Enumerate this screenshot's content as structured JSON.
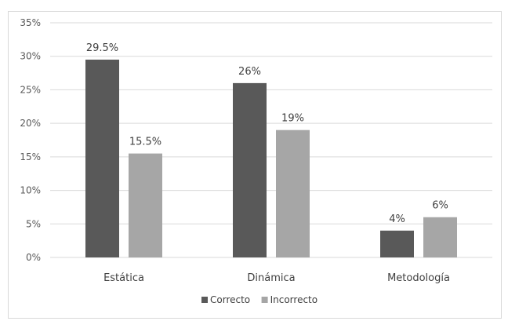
{
  "chart_data": {
    "type": "bar",
    "title": "",
    "xlabel": "",
    "ylabel": "",
    "categories": [
      "Estática",
      "Dinámica",
      "Metodología"
    ],
    "series": [
      {
        "name": "Correcto",
        "values": [
          29.5,
          26,
          4
        ],
        "labels": [
          "29.5%",
          "26%",
          "4%"
        ],
        "color": "#595959"
      },
      {
        "name": "Incorrecto",
        "values": [
          15.5,
          19,
          6
        ],
        "labels": [
          "15.5%",
          "19%",
          "6%"
        ],
        "color": "#a6a6a6"
      }
    ],
    "ylim": [
      0,
      35
    ],
    "yticks": [
      0,
      5,
      10,
      15,
      20,
      25,
      30,
      35
    ],
    "ytick_labels": [
      "0%",
      "5%",
      "10%",
      "15%",
      "20%",
      "25%",
      "30%",
      "35%"
    ],
    "grid": true,
    "legend_position": "bottom"
  }
}
